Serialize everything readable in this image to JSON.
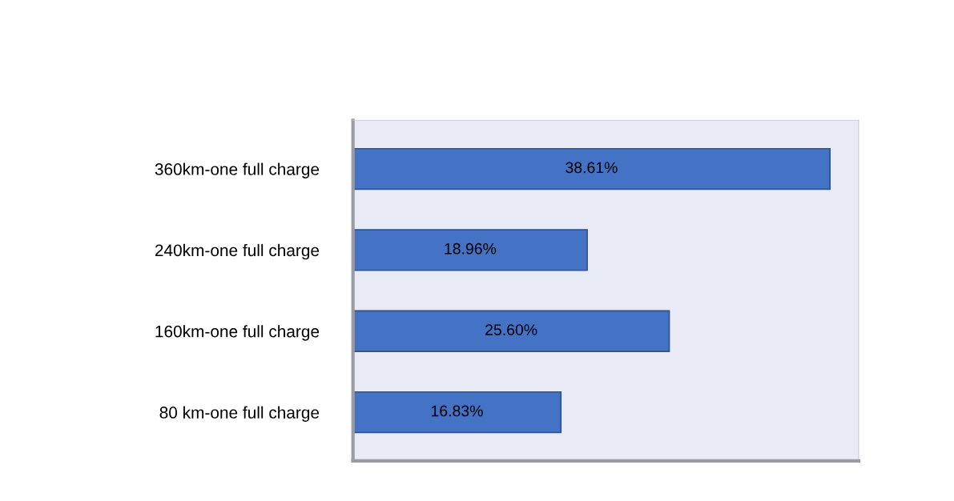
{
  "chart_data": {
    "type": "bar",
    "orientation": "horizontal",
    "categories": [
      "360km-one full charge",
      "240km-one full charge",
      "160km-one full charge",
      "80 km-one full charge"
    ],
    "values": [
      38.61,
      18.96,
      25.6,
      16.83
    ],
    "value_labels": [
      "38.61%",
      "18.96%",
      "25.60%",
      "16.83%"
    ],
    "color": "#4472c4",
    "tick_labels": "y",
    "grid": false,
    "legend": false
  }
}
